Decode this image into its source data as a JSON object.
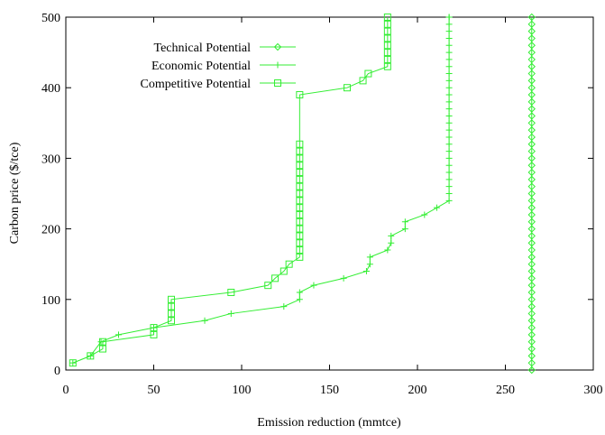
{
  "chart_data": {
    "type": "line",
    "title": "",
    "xlabel": "Emission reduction (mmtce)",
    "ylabel": "Carbon price ($/tce)",
    "xlim": [
      0,
      300
    ],
    "ylim": [
      0,
      500
    ],
    "xticks": [
      0,
      50,
      100,
      150,
      200,
      250,
      300
    ],
    "yticks": [
      0,
      100,
      200,
      300,
      400,
      500
    ],
    "grid": false,
    "legend_position": "top-left",
    "line_color": "#33ee33",
    "series": [
      {
        "name": "Technical Potential",
        "marker": "diamond",
        "x": [
          265,
          265,
          265,
          265,
          265,
          265,
          265,
          265,
          265,
          265,
          265,
          265,
          265,
          265,
          265,
          265,
          265,
          265,
          265,
          265,
          265,
          265,
          265,
          265,
          265,
          265,
          265,
          265,
          265,
          265,
          265,
          265,
          265,
          265,
          265,
          265,
          265,
          265,
          265,
          265,
          265,
          265,
          265,
          265,
          265,
          265,
          265,
          265,
          265,
          265,
          265
        ],
        "y": [
          0,
          10,
          20,
          30,
          40,
          50,
          60,
          70,
          80,
          90,
          100,
          110,
          120,
          130,
          140,
          150,
          160,
          170,
          180,
          190,
          200,
          210,
          220,
          230,
          240,
          250,
          260,
          270,
          280,
          290,
          300,
          310,
          320,
          330,
          340,
          350,
          360,
          370,
          380,
          390,
          400,
          410,
          420,
          430,
          440,
          450,
          460,
          470,
          480,
          490,
          500
        ]
      },
      {
        "name": "Economic Potential",
        "marker": "plus",
        "x": [
          4,
          14,
          20,
          30,
          50,
          79,
          94,
          124,
          133,
          133,
          141,
          158,
          171,
          173,
          173,
          183,
          185,
          185,
          193,
          193,
          204,
          211,
          218,
          218,
          218,
          218,
          218,
          218,
          218,
          218,
          218,
          218,
          218,
          218,
          218,
          218,
          218,
          218,
          218,
          218,
          218,
          218,
          218,
          218,
          218,
          218,
          218,
          218,
          218,
          218,
          218
        ],
        "y": [
          10,
          20,
          40,
          50,
          60,
          70,
          80,
          90,
          100,
          110,
          120,
          130,
          140,
          150,
          160,
          170,
          180,
          190,
          200,
          210,
          220,
          230,
          240,
          250,
          260,
          270,
          280,
          290,
          300,
          310,
          320,
          330,
          340,
          350,
          360,
          370,
          380,
          390,
          400,
          410,
          420,
          430,
          440,
          450,
          460,
          470,
          480,
          490,
          500,
          500,
          500
        ]
      },
      {
        "name": "Competitive Potential",
        "marker": "square",
        "x": [
          4,
          14,
          21,
          21,
          50,
          50,
          60,
          60,
          60,
          60,
          94,
          115,
          119,
          124,
          127,
          133,
          133,
          133,
          133,
          133,
          133,
          133,
          133,
          133,
          133,
          133,
          133,
          133,
          133,
          133,
          133,
          133,
          133,
          160,
          169,
          172,
          183,
          183,
          183,
          183,
          183,
          183,
          183,
          183
        ],
        "y": [
          10,
          20,
          30,
          40,
          50,
          60,
          70,
          80,
          90,
          100,
          110,
          120,
          130,
          140,
          150,
          160,
          170,
          180,
          190,
          200,
          210,
          220,
          230,
          240,
          250,
          260,
          270,
          280,
          290,
          300,
          310,
          320,
          390,
          400,
          410,
          420,
          430,
          440,
          450,
          460,
          470,
          480,
          490,
          500
        ]
      }
    ]
  }
}
